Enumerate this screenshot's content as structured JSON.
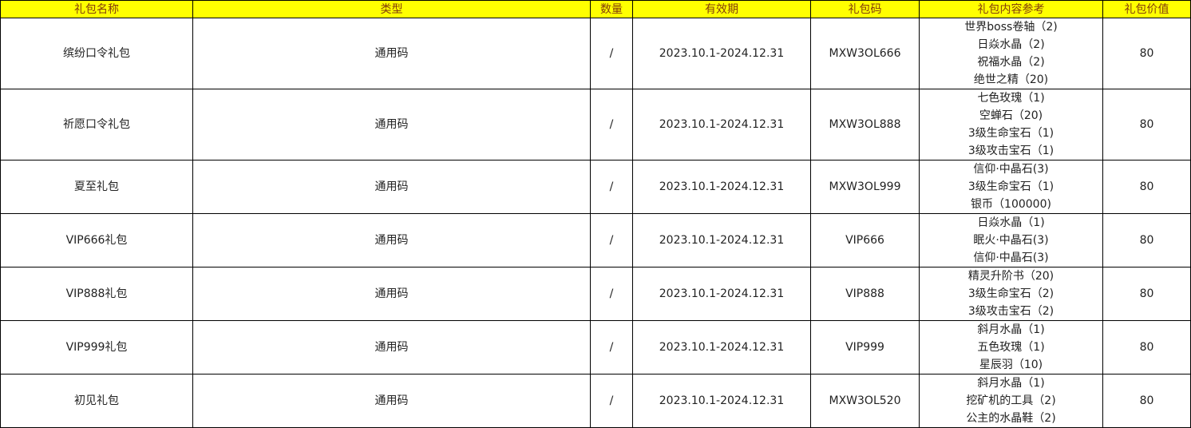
{
  "header_color": "#FFFF00",
  "headers": [
    "礼包名称",
    "类型",
    "数量",
    "有效期",
    "礼包码",
    "礼包内容参考",
    "礼包价值"
  ],
  "rows": [
    {
      "name": "缤纷口令礼包",
      "type": "通用码",
      "qty": "/",
      "validity": "2023.10.1-2024.12.31",
      "code": "MXW3OL666",
      "items": [
        "世界boss卷轴（2)",
        "日焱水晶（2)",
        "祝福水晶（2)",
        "绝世之精（20)"
      ],
      "value": "80"
    },
    {
      "name": "祈愿口令礼包",
      "type": "通用码",
      "qty": "/",
      "validity": "2023.10.1-2024.12.31",
      "code": "MXW3OL888",
      "items": [
        "七色玫瑰（1)",
        "空蝉石（20)",
        "3级生命宝石（1)",
        "3级攻击宝石（1)"
      ],
      "value": "80"
    },
    {
      "name": "夏至礼包",
      "type": "通用码",
      "qty": "/",
      "validity": "2023.10.1-2024.12.31",
      "code": "MXW3OL999",
      "items": [
        "信仰·中晶石(3)",
        "3级生命宝石（1)",
        "银币（100000)"
      ],
      "value": "80"
    },
    {
      "name": "VIP666礼包",
      "type": "通用码",
      "qty": "/",
      "validity": "2023.10.1-2024.12.31",
      "code": "VIP666",
      "items": [
        "日焱水晶（1)",
        "眠火·中晶石(3)",
        "信仰·中晶石(3)"
      ],
      "value": "80"
    },
    {
      "name": "VIP888礼包",
      "type": "通用码",
      "qty": "/",
      "validity": "2023.10.1-2024.12.31",
      "code": "VIP888",
      "items": [
        "精灵升阶书（20)",
        "3级生命宝石（2)",
        "3级攻击宝石（2)"
      ],
      "value": "80"
    },
    {
      "name": "VIP999礼包",
      "type": "通用码",
      "qty": "/",
      "validity": "2023.10.1-2024.12.31",
      "code": "VIP999",
      "items": [
        "斜月水晶（1)",
        "五色玫瑰（1)",
        "星辰羽（10)"
      ],
      "value": "80"
    },
    {
      "name": "初见礼包",
      "type": "通用码",
      "qty": "/",
      "validity": "2023.10.1-2024.12.31",
      "code": "MXW3OL520",
      "items": [
        "斜月水晶（1)",
        "挖矿机的工具（2)",
        "公主的水晶鞋（2)"
      ],
      "value": "80"
    }
  ]
}
